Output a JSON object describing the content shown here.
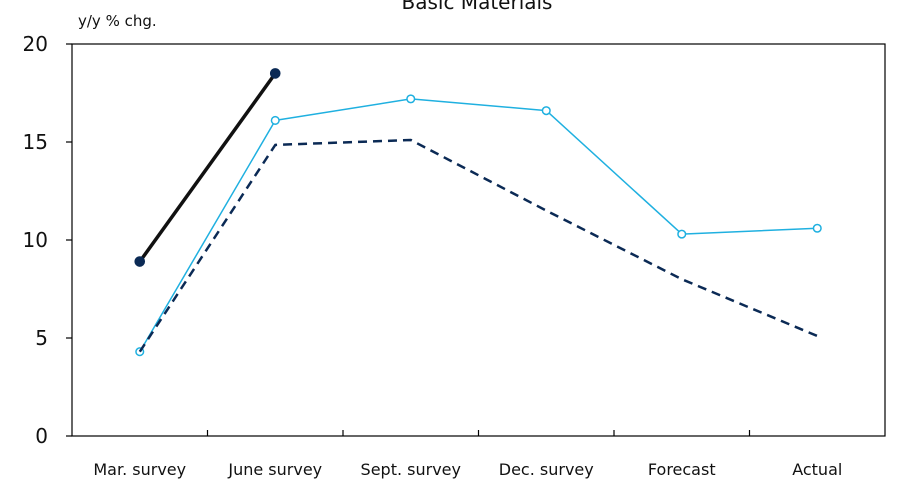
{
  "chart_data": {
    "type": "line",
    "title": "Basic Materials",
    "ylabel": "y/y % chg.",
    "xlabel": "",
    "categories": [
      "Mar. survey",
      "June survey",
      "Sept. survey",
      "Dec. survey",
      "Forecast",
      "Actual"
    ],
    "yticks": [
      0,
      5,
      10,
      15,
      20
    ],
    "ylim": [
      0,
      20
    ],
    "grid": false,
    "series": [
      {
        "values": [
          8.9,
          18.5,
          null,
          null,
          null,
          null
        ],
        "color": "#111111",
        "style": "solid-bold-markers"
      },
      {
        "values": [
          4.3,
          16.1,
          17.2,
          16.6,
          10.3,
          10.6
        ],
        "color": "#1fb0e0",
        "style": "solid-open-markers"
      },
      {
        "values": [
          4.3,
          14.85,
          15.1,
          11.5,
          8.0,
          5.1
        ],
        "color": "#0b2a55",
        "style": "dashed"
      }
    ]
  }
}
